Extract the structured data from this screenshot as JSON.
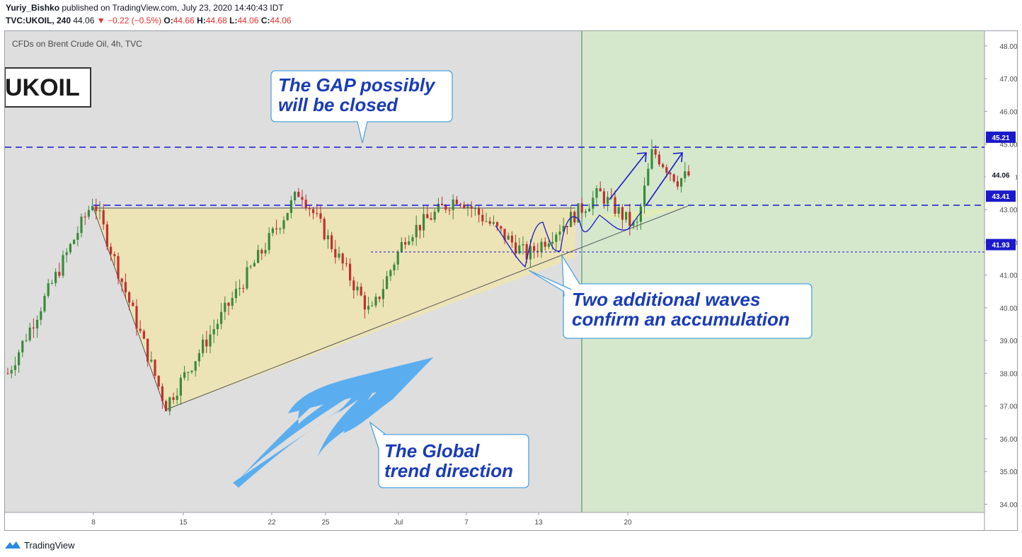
{
  "header": {
    "author": "Yuriy_Bishko",
    "published_text": "published on TradingView.com, July 23, 2020 14:40:43 IDT",
    "symbol": "TVC:UKOIL, 240",
    "last": "44.06",
    "change": "−0.22 (−0.5%)",
    "o_label": "O:",
    "o": "44.66",
    "h_label": "H:",
    "h": "44.68",
    "l_label": "L:",
    "l": "44.06",
    "c_label": "C:",
    "c": "44.06"
  },
  "footer": {
    "brand": "TradingView"
  },
  "colors": {
    "bg": "#dedede",
    "future_zone": "#d5e8cc",
    "up": "#3b8a3b",
    "down": "#c1302f",
    "level_line": "#1a1acc",
    "callout_text": "#1a3cb8",
    "triangle_fill": "#efe4b0",
    "arrow": "#5aaeef"
  },
  "chart_data": {
    "type": "candlestick",
    "title": "CFDs on Brent Crude Oil, 4h, TVC",
    "watermark": "UKOIL",
    "x_ticks": [
      "8",
      "15",
      "22",
      "25",
      "Jul",
      "7",
      "13",
      "20"
    ],
    "y_ticks": [
      "48.00",
      "47.00",
      "46.00",
      "45.00",
      "44.00",
      "43.00",
      "42.00",
      "41.00",
      "40.00",
      "39.00",
      "38.00",
      "37.00",
      "36.00",
      "35.00",
      "34.00"
    ],
    "ylim": [
      33.75,
      48.45
    ],
    "price_labels": [
      {
        "text": "45.21",
        "value": 45.21,
        "style": "level"
      },
      {
        "text": "44.06",
        "value": 44.06,
        "style": "last"
      },
      {
        "text": "43.41",
        "value": 43.41,
        "style": "level"
      },
      {
        "text": "41.93",
        "value": 41.93,
        "style": "level"
      }
    ],
    "levels": [
      45.21,
      43.41,
      41.93
    ],
    "price_path": [
      [
        "start",
        38.0
      ],
      [
        "8",
        43.3
      ],
      [
        "12",
        37.0
      ],
      [
        "22",
        43.6
      ],
      [
        "27",
        39.8
      ],
      [
        "Jul",
        42.2
      ],
      [
        "7",
        43.4
      ],
      [
        "13",
        41.6
      ],
      [
        "18",
        43.5
      ],
      [
        "21",
        42.4
      ],
      [
        "22",
        44.8
      ],
      [
        "23",
        43.9
      ],
      [
        "end",
        44.06
      ]
    ],
    "annotations": [
      "The GAP possibly will be closed",
      "Two additional waves confirm an accumulation",
      "The Global trend direction"
    ]
  }
}
